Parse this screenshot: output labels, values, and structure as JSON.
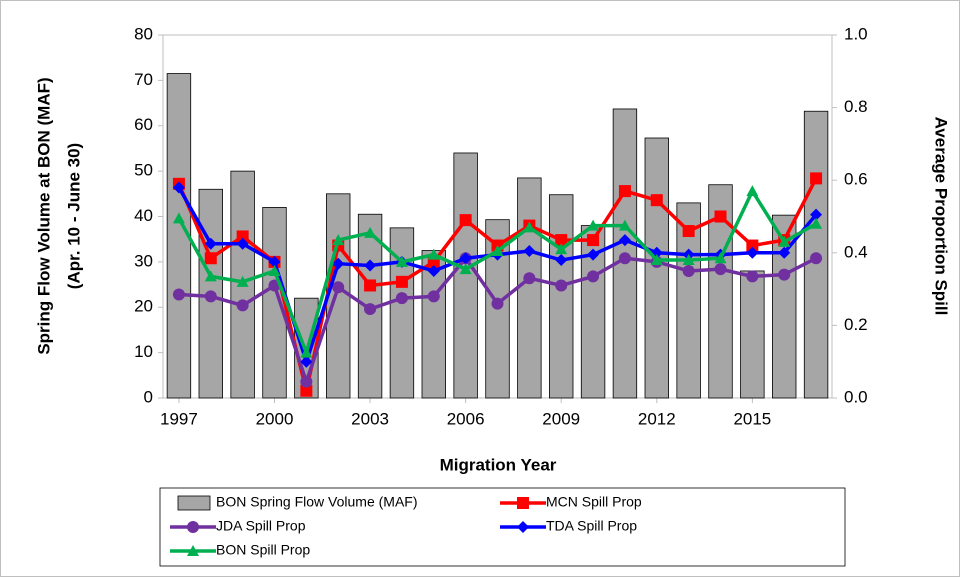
{
  "chart_data": {
    "type": "bar-line",
    "x_label": "Migration Year",
    "y_label": [
      "Spring Flow Volume at BON (MAF)",
      "(Apr. 10 - June 30)"
    ],
    "y2_label": "Average Proportion Spill",
    "x": [
      1997,
      1998,
      1999,
      2000,
      2001,
      2002,
      2003,
      2004,
      2005,
      2006,
      2007,
      2008,
      2009,
      2010,
      2011,
      2012,
      2013,
      2014,
      2015,
      2016,
      2017
    ],
    "xlim": [
      1996.5,
      2017.5
    ],
    "xticks": [
      1997,
      2000,
      2003,
      2006,
      2009,
      2012,
      2015
    ],
    "ylim": [
      0,
      80
    ],
    "yticks": [
      0,
      10,
      20,
      30,
      40,
      50,
      60,
      70,
      80
    ],
    "y2lim": [
      0,
      1
    ],
    "y2ticks": [
      {
        "value": 0,
        "label": "0.0"
      },
      {
        "value": 0.2,
        "label": "0.2"
      },
      {
        "value": 0.4,
        "label": "0.4"
      },
      {
        "value": 0.6,
        "label": "0.6"
      },
      {
        "value": 0.8,
        "label": "0.8"
      },
      {
        "value": 1,
        "label": "1.0"
      }
    ],
    "grid": false,
    "series": [
      {
        "name": "BON Spring Flow Volume (MAF)",
        "type": "bar",
        "color": "#a6a6a6",
        "values": [
          71.5,
          46,
          50,
          42,
          22,
          45,
          40.5,
          37.5,
          32.5,
          54,
          39.3,
          48.5,
          44.8,
          38,
          63.7,
          57.3,
          43,
          47,
          28,
          40.3,
          63.2
        ]
      },
      {
        "name": "MCN Spill Prop",
        "type": "line",
        "axis": "y2",
        "color": "#ff0000",
        "marker": "square",
        "values": [
          0.59,
          0.385,
          0.445,
          0.375,
          0.02,
          0.42,
          0.31,
          0.32,
          0.375,
          0.49,
          0.42,
          0.475,
          0.435,
          0.435,
          0.57,
          0.545,
          0.46,
          0.5,
          0.42,
          0.435,
          0.605
        ]
      },
      {
        "name": "JDA Spill Prop",
        "type": "line",
        "axis": "y2",
        "color": "#7030a0",
        "marker": "circle",
        "values": [
          0.285,
          0.28,
          0.255,
          0.31,
          0.045,
          0.305,
          0.245,
          0.275,
          0.28,
          0.385,
          0.26,
          0.33,
          0.31,
          0.335,
          0.385,
          0.375,
          0.35,
          0.355,
          0.335,
          0.34,
          0.385
        ]
      },
      {
        "name": "TDA Spill Prop",
        "type": "line",
        "axis": "y2",
        "color": "#0000ff",
        "marker": "diamond",
        "values": [
          0.58,
          0.425,
          0.425,
          0.375,
          0.1,
          0.37,
          0.365,
          0.375,
          0.35,
          0.385,
          0.395,
          0.405,
          0.38,
          0.395,
          0.435,
          0.4,
          0.395,
          0.395,
          0.4,
          0.4,
          0.505
        ]
      },
      {
        "name": "BON Spill Prop",
        "type": "line",
        "axis": "y2",
        "color": "#00b050",
        "marker": "triangle",
        "values": [
          0.495,
          0.335,
          0.32,
          0.35,
          0.125,
          0.435,
          0.455,
          0.375,
          0.395,
          0.355,
          0.405,
          0.47,
          0.41,
          0.475,
          0.475,
          0.38,
          0.38,
          0.385,
          0.57,
          0.43,
          0.48
        ]
      }
    ]
  }
}
